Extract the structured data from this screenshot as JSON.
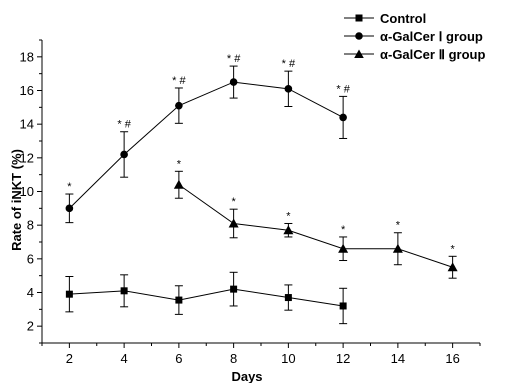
{
  "chart_data": {
    "type": "line",
    "title": "",
    "xlabel": "Days",
    "ylabel": "Rate of iNKT (%)",
    "xlim": [
      1,
      17
    ],
    "ylim": [
      1,
      19
    ],
    "xticks": [
      2,
      4,
      6,
      8,
      10,
      12,
      14,
      16
    ],
    "yticks": [
      2,
      4,
      6,
      8,
      10,
      12,
      14,
      16,
      18
    ],
    "grid": false,
    "legend_position": "top-right",
    "series": [
      {
        "name": "Control",
        "marker": "square",
        "x": [
          2,
          4,
          6,
          8,
          10,
          12
        ],
        "y": [
          3.9,
          4.1,
          3.55,
          4.2,
          3.7,
          3.2
        ],
        "error": [
          1.05,
          0.95,
          0.85,
          1.0,
          0.75,
          1.05
        ],
        "annotations": [
          "",
          "",
          "",
          "",
          "",
          ""
        ]
      },
      {
        "name": "α-GalCer Ⅰ group",
        "marker": "circle",
        "x": [
          2,
          4,
          6,
          8,
          10,
          12
        ],
        "y": [
          9.0,
          12.2,
          15.1,
          16.5,
          16.1,
          14.4
        ],
        "error": [
          0.85,
          1.35,
          1.05,
          0.95,
          1.05,
          1.25
        ],
        "annotations": [
          "*",
          "* #",
          "* #",
          "* #",
          "* #",
          "* #"
        ]
      },
      {
        "name": "α-GalCer Ⅱ group",
        "marker": "triangle",
        "x": [
          6,
          8,
          10,
          12,
          14,
          16
        ],
        "y": [
          10.4,
          8.1,
          7.7,
          6.6,
          6.6,
          5.5
        ],
        "error": [
          0.8,
          0.85,
          0.4,
          0.7,
          0.95,
          0.65
        ],
        "annotations": [
          "*",
          "*",
          "*",
          "*",
          "*",
          "*"
        ]
      }
    ]
  }
}
